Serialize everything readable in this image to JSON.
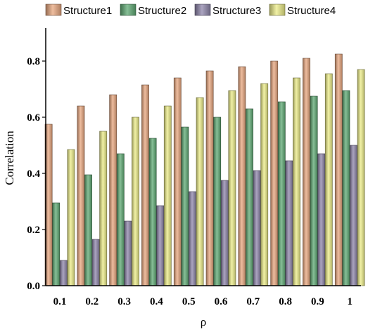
{
  "chart_data": {
    "type": "bar",
    "title": "",
    "xlabel": "ρ",
    "ylabel": "Correlation",
    "categories": [
      "0.1",
      "0.2",
      "0.3",
      "0.4",
      "0.5",
      "0.6",
      "0.7",
      "0.8",
      "0.9",
      "1"
    ],
    "ylim": [
      0,
      0.9
    ],
    "yticks": [
      "0.0",
      "0.2",
      "0.4",
      "0.6",
      "0.8"
    ],
    "grid": false,
    "legend_position": "top",
    "series": [
      {
        "name": "Structure1",
        "color": "#e8a77f",
        "values": [
          0.575,
          0.64,
          0.68,
          0.715,
          0.74,
          0.765,
          0.78,
          0.8,
          0.81,
          0.825
        ]
      },
      {
        "name": "Structure2",
        "color": "#5faa74",
        "values": [
          0.295,
          0.395,
          0.47,
          0.525,
          0.565,
          0.6,
          0.63,
          0.655,
          0.675,
          0.695
        ]
      },
      {
        "name": "Structure3",
        "color": "#8f86ab",
        "values": [
          0.09,
          0.165,
          0.23,
          0.285,
          0.335,
          0.375,
          0.41,
          0.445,
          0.47,
          0.5
        ]
      },
      {
        "name": "Structure4",
        "color": "#ecec88",
        "values": [
          0.485,
          0.55,
          0.6,
          0.64,
          0.67,
          0.695,
          0.72,
          0.74,
          0.755,
          0.77
        ]
      }
    ]
  }
}
